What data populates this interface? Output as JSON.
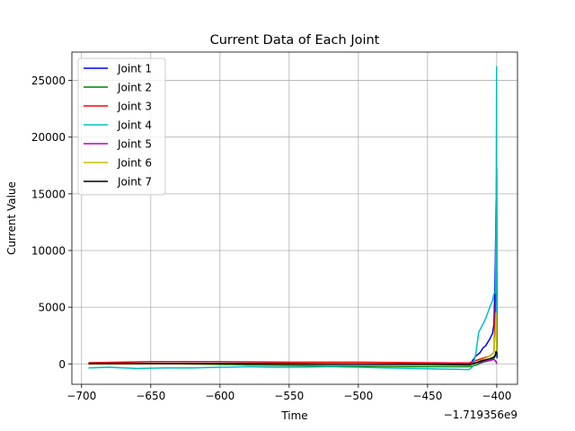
{
  "chart_data": {
    "type": "line",
    "title": "Current Data of Each Joint",
    "xlabel": "Time",
    "ylabel": "Current Value",
    "x_offset_label": "−1.719356e9",
    "xlim": [
      -707,
      -385
    ],
    "ylim": [
      -1800,
      27500
    ],
    "xticks": [
      -700,
      -650,
      -600,
      -550,
      -500,
      -450,
      -400
    ],
    "xtick_labels": [
      "−700",
      "−650",
      "−600",
      "−550",
      "−500",
      "−450",
      "−400"
    ],
    "yticks": [
      0,
      5000,
      10000,
      15000,
      20000,
      25000
    ],
    "ytick_labels": [
      "0",
      "5000",
      "10000",
      "15000",
      "20000",
      "25000"
    ],
    "grid": true,
    "legend_position": "upper-left",
    "series": [
      {
        "name": "Joint 1",
        "color": "#0000ff",
        "x": [
          -695,
          -650,
          -600,
          -550,
          -500,
          -450,
          -420,
          -418,
          -415,
          -412,
          -410,
          -408,
          -405,
          -403,
          -402,
          -401.5,
          -401,
          -400.5,
          -400,
          -399.8
        ],
        "y": [
          0,
          20,
          30,
          10,
          -20,
          -40,
          -50,
          200,
          700,
          1000,
          1400,
          1600,
          2200,
          2700,
          3500,
          6000,
          9000,
          14000,
          17300,
          500
        ]
      },
      {
        "name": "Joint 2",
        "color": "#008000",
        "x": [
          -695,
          -650,
          -600,
          -550,
          -500,
          -450,
          -420,
          -415,
          -410,
          -405,
          -402,
          -400.5,
          -400
        ],
        "y": [
          50,
          30,
          -50,
          -150,
          -200,
          -250,
          -250,
          -100,
          150,
          300,
          500,
          800,
          1000
        ]
      },
      {
        "name": "Joint 3",
        "color": "#ff0000",
        "x": [
          -695,
          -650,
          -600,
          -550,
          -500,
          -450,
          -420,
          -415,
          -410,
          -405,
          -402,
          -401,
          -400.5,
          -400,
          -399.8
        ],
        "y": [
          100,
          200,
          200,
          150,
          150,
          100,
          80,
          300,
          500,
          700,
          1000,
          5000,
          6500,
          7100,
          5800
        ]
      },
      {
        "name": "Joint 4",
        "color": "#00bfbf",
        "x": [
          -695,
          -680,
          -660,
          -640,
          -620,
          -600,
          -580,
          -560,
          -540,
          -520,
          -500,
          -480,
          -460,
          -440,
          -420,
          -417,
          -415,
          -413,
          -410,
          -408,
          -405,
          -403,
          -402,
          -401,
          -400.8,
          -400.5,
          -400.3,
          -400.1,
          -400
        ],
        "y": [
          -350,
          -300,
          -400,
          -350,
          -350,
          -300,
          -250,
          -300,
          -300,
          -250,
          -300,
          -350,
          -400,
          -450,
          -500,
          -200,
          1000,
          2800,
          3500,
          4000,
          5000,
          5600,
          6200,
          6300,
          8000,
          13000,
          17000,
          26200,
          1000
        ]
      },
      {
        "name": "Joint 5",
        "color": "#bf00bf",
        "x": [
          -695,
          -650,
          -600,
          -550,
          -500,
          -450,
          -420,
          -415,
          -410,
          -405,
          -402,
          -400.5,
          -400
        ],
        "y": [
          10,
          0,
          0,
          -10,
          0,
          0,
          0,
          100,
          200,
          300,
          400,
          200,
          0
        ]
      },
      {
        "name": "Joint 6",
        "color": "#bfbf00",
        "x": [
          -695,
          -650,
          -600,
          -550,
          -500,
          -450,
          -420,
          -415,
          -410,
          -405,
          -402,
          -401,
          -400.5,
          -400
        ],
        "y": [
          0,
          10,
          0,
          -20,
          0,
          -30,
          -100,
          100,
          400,
          700,
          1000,
          3000,
          4500,
          1000
        ]
      },
      {
        "name": "Joint 7",
        "color": "#000000",
        "x": [
          -695,
          -650,
          -600,
          -550,
          -500,
          -450,
          -420,
          -415,
          -410,
          -405,
          -402,
          -401,
          -400.5,
          -400
        ],
        "y": [
          20,
          30,
          20,
          0,
          -20,
          -50,
          -80,
          100,
          300,
          450,
          600,
          800,
          1100,
          900
        ]
      }
    ]
  }
}
